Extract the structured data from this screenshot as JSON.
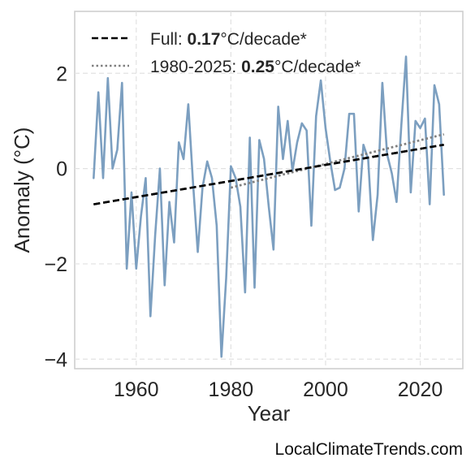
{
  "chart_data": {
    "type": "line",
    "xlabel": "Year",
    "ylabel": "Anomaly (°C)",
    "xlim": [
      1947,
      2029
    ],
    "ylim": [
      -4.2,
      3.3
    ],
    "x_ticks": [
      1960,
      1980,
      2000,
      2020
    ],
    "y_ticks": [
      -4,
      -2,
      0,
      2
    ],
    "x_tick_labels": [
      "1960",
      "1980",
      "2000",
      "2020"
    ],
    "y_tick_labels": [
      "−4",
      "−2",
      "0",
      "2"
    ],
    "grid": true,
    "legend_position": "top-left",
    "x": [
      1951,
      1952,
      1953,
      1954,
      1955,
      1956,
      1957,
      1958,
      1959,
      1960,
      1961,
      1962,
      1963,
      1964,
      1965,
      1966,
      1967,
      1968,
      1969,
      1970,
      1971,
      1972,
      1973,
      1974,
      1975,
      1976,
      1977,
      1978,
      1979,
      1980,
      1981,
      1982,
      1983,
      1984,
      1985,
      1986,
      1987,
      1988,
      1989,
      1990,
      1991,
      1992,
      1993,
      1994,
      1995,
      1996,
      1997,
      1998,
      1999,
      2000,
      2001,
      2002,
      2003,
      2004,
      2005,
      2006,
      2007,
      2008,
      2009,
      2010,
      2011,
      2012,
      2013,
      2014,
      2015,
      2016,
      2017,
      2018,
      2019,
      2020,
      2021,
      2022,
      2023,
      2024,
      2025
    ],
    "series": [
      {
        "values": [
          -0.2,
          1.6,
          -0.2,
          1.9,
          0.0,
          0.4,
          1.8,
          -2.1,
          -0.5,
          -2.1,
          -1.0,
          -0.2,
          -3.1,
          -1.4,
          0.0,
          -2.45,
          -0.7,
          -1.55,
          0.55,
          0.2,
          1.35,
          -0.3,
          -1.75,
          -0.4,
          0.15,
          -0.2,
          -1.2,
          -3.95,
          -2.3,
          0.05,
          -0.2,
          -0.8,
          -2.6,
          0.65,
          -2.5,
          0.6,
          0.2,
          -0.8,
          -1.7,
          1.3,
          0.2,
          1.0,
          -0.05,
          0.55,
          0.95,
          0.8,
          -1.2,
          1.1,
          1.85,
          0.85,
          0.15,
          -0.45,
          -0.4,
          0.0,
          1.15,
          1.15,
          -0.9,
          0.5,
          0.2,
          -1.5,
          -0.55,
          1.8,
          0.3,
          -0.1,
          -0.7,
          0.9,
          2.35,
          -0.5,
          1.0,
          0.85,
          1.05,
          -0.75,
          1.75,
          1.35,
          -0.55
        ],
        "color": "#7c9fc0"
      }
    ],
    "trends": [
      {
        "label_prefix": "Full: ",
        "label_value": "0.17",
        "label_suffix": "°C/decade*",
        "style": "dashed",
        "color": "#000000",
        "x": [
          1951,
          2025
        ],
        "y": [
          -0.75,
          0.5
        ]
      },
      {
        "label_prefix": "1980-2025: ",
        "label_value": "0.25",
        "label_suffix": "°C/decade*",
        "style": "dotted",
        "color": "#808080",
        "x": [
          1980,
          2025
        ],
        "y": [
          -0.4,
          0.72
        ]
      }
    ]
  },
  "footer": {
    "credit": "LocalClimateTrends.com"
  }
}
